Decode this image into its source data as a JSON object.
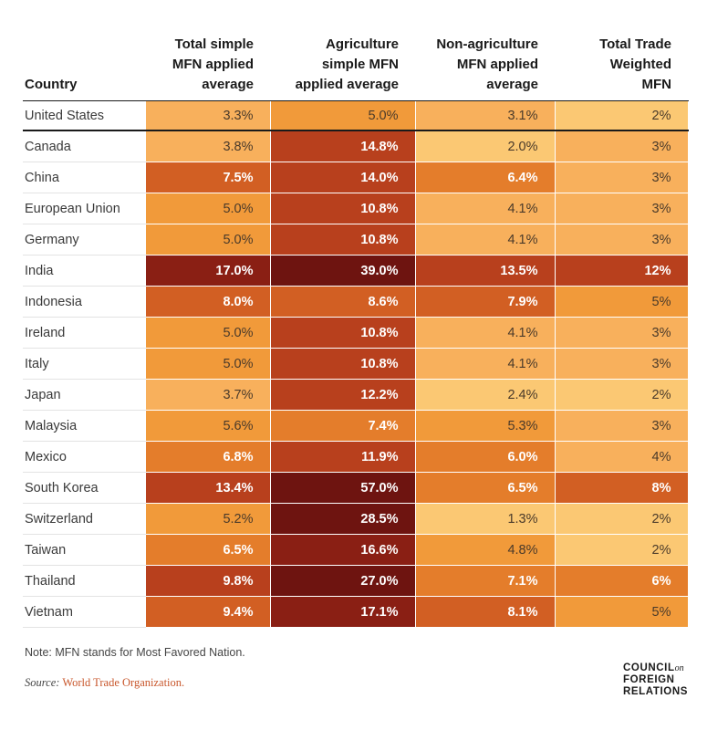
{
  "chart_data": {
    "type": "heatmap",
    "columns": [
      "Country",
      "Total simple\nMFN applied\naverage",
      "Agriculture\nsimple MFN\napplied average",
      "Non-agriculture\nMFN applied\naverage",
      "Total Trade\nWeighted\nMFN"
    ],
    "rows": [
      {
        "country": "United States",
        "values": [
          3.3,
          5.0,
          3.1,
          2
        ],
        "labels": [
          "3.3%",
          "5.0%",
          "3.1%",
          "2%"
        ]
      },
      {
        "country": "Canada",
        "values": [
          3.8,
          14.8,
          2.0,
          3
        ],
        "labels": [
          "3.8%",
          "14.8%",
          "2.0%",
          "3%"
        ]
      },
      {
        "country": "China",
        "values": [
          7.5,
          14.0,
          6.4,
          3
        ],
        "labels": [
          "7.5%",
          "14.0%",
          "6.4%",
          "3%"
        ]
      },
      {
        "country": "European Union",
        "values": [
          5.0,
          10.8,
          4.1,
          3
        ],
        "labels": [
          "5.0%",
          "10.8%",
          "4.1%",
          "3%"
        ]
      },
      {
        "country": "Germany",
        "values": [
          5.0,
          10.8,
          4.1,
          3
        ],
        "labels": [
          "5.0%",
          "10.8%",
          "4.1%",
          "3%"
        ]
      },
      {
        "country": "India",
        "values": [
          17.0,
          39.0,
          13.5,
          12
        ],
        "labels": [
          "17.0%",
          "39.0%",
          "13.5%",
          "12%"
        ]
      },
      {
        "country": "Indonesia",
        "values": [
          8.0,
          8.6,
          7.9,
          5
        ],
        "labels": [
          "8.0%",
          "8.6%",
          "7.9%",
          "5%"
        ]
      },
      {
        "country": "Ireland",
        "values": [
          5.0,
          10.8,
          4.1,
          3
        ],
        "labels": [
          "5.0%",
          "10.8%",
          "4.1%",
          "3%"
        ]
      },
      {
        "country": "Italy",
        "values": [
          5.0,
          10.8,
          4.1,
          3
        ],
        "labels": [
          "5.0%",
          "10.8%",
          "4.1%",
          "3%"
        ]
      },
      {
        "country": "Japan",
        "values": [
          3.7,
          12.2,
          2.4,
          2
        ],
        "labels": [
          "3.7%",
          "12.2%",
          "2.4%",
          "2%"
        ]
      },
      {
        "country": "Malaysia",
        "values": [
          5.6,
          7.4,
          5.3,
          3
        ],
        "labels": [
          "5.6%",
          "7.4%",
          "5.3%",
          "3%"
        ]
      },
      {
        "country": "Mexico",
        "values": [
          6.8,
          11.9,
          6.0,
          4
        ],
        "labels": [
          "6.8%",
          "11.9%",
          "6.0%",
          "4%"
        ]
      },
      {
        "country": "South Korea",
        "values": [
          13.4,
          57.0,
          6.5,
          8
        ],
        "labels": [
          "13.4%",
          "57.0%",
          "6.5%",
          "8%"
        ]
      },
      {
        "country": "Switzerland",
        "values": [
          5.2,
          28.5,
          1.3,
          2
        ],
        "labels": [
          "5.2%",
          "28.5%",
          "1.3%",
          "2%"
        ]
      },
      {
        "country": "Taiwan",
        "values": [
          6.5,
          16.6,
          4.8,
          2
        ],
        "labels": [
          "6.5%",
          "16.6%",
          "4.8%",
          "2%"
        ]
      },
      {
        "country": "Thailand",
        "values": [
          9.8,
          27.0,
          7.1,
          6
        ],
        "labels": [
          "9.8%",
          "27.0%",
          "7.1%",
          "6%"
        ]
      },
      {
        "country": "Vietnam",
        "values": [
          9.4,
          17.1,
          8.1,
          5
        ],
        "labels": [
          "9.4%",
          "17.1%",
          "8.1%",
          "5%"
        ]
      }
    ],
    "color_scale": [
      "#fbc873",
      "#f8b05c",
      "#f19a3a",
      "#e47d2b",
      "#d25f23",
      "#b8401d",
      "#8a1f14",
      "#6e1410"
    ]
  },
  "note": "Note: MFN stands for Most Favored Nation.",
  "source": {
    "label": "Source:",
    "value": "World Trade Organization."
  },
  "logo": {
    "line1": "COUNCIL",
    "on": "on",
    "line2": "FOREIGN",
    "line3": "RELATIONS"
  }
}
